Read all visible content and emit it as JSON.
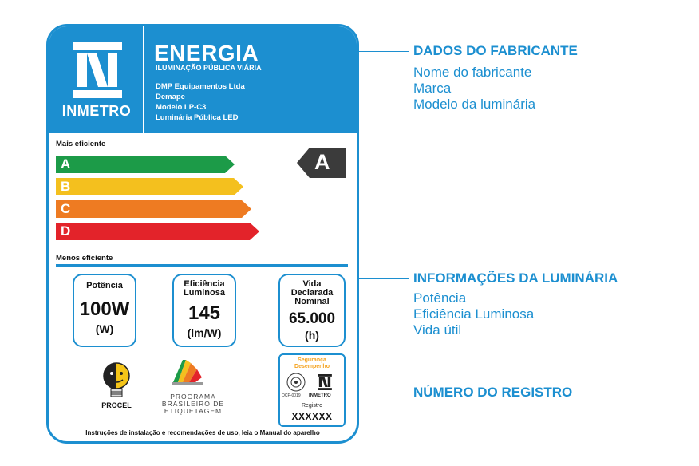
{
  "label": {
    "logo_text": "INMETRO",
    "title": "ENERGIA",
    "subtitle": "ILUMINAÇÃO PÚBLICA VIÁRIA",
    "info": [
      "DMP Equipamentos Ltda",
      "Demape",
      "Modelo LP-C3",
      "Luminária Pública LED"
    ],
    "mais_eficiente": "Mais eficiente",
    "menos_eficiente": "Menos eficiente",
    "classes": [
      {
        "letter": "A",
        "color": "#1c9b48"
      },
      {
        "letter": "B",
        "color": "#f4c01e"
      },
      {
        "letter": "C",
        "color": "#ee7b22"
      },
      {
        "letter": "D",
        "color": "#e3232a"
      }
    ],
    "selected_class": "A",
    "selected_color": "#3b3b3b",
    "potencia": {
      "caption": "Potência",
      "value": "100W",
      "unit": "(W)"
    },
    "eficiencia": {
      "caption1": "Eficiência",
      "caption2": "Luminosa",
      "value": "145",
      "unit": "(lm/W)"
    },
    "vida": {
      "caption1": "Vida",
      "caption2": "Declarada",
      "caption3": "Nominal",
      "value": "65.000",
      "unit": "(h)"
    },
    "procel": "PROCEL",
    "pbe": [
      "PROGRAMA",
      "BRASILEIRO DE",
      "ETIQUETAGEM"
    ],
    "seal": {
      "top1": "Segurança",
      "top2": "Desempenho",
      "ocp": "OCP-0019",
      "inmetro": "INMETRO",
      "registro": "Registro",
      "number": "XXXXXX"
    },
    "footer": "Instruções de instalação e recomendações de uso, leia o Manual do aparelho"
  },
  "annotations": {
    "fabricante": {
      "title": "DADOS DO FABRICANTE",
      "items": [
        "Nome do fabricante",
        "Marca",
        "Modelo da luminária"
      ]
    },
    "luminaria": {
      "title": "INFORMAÇÕES DA LUMINÁRIA",
      "items": [
        "Potência",
        "Eficiência Luminosa",
        "Vida útil"
      ]
    },
    "registro": {
      "title": "NÚMERO DO REGISTRO"
    }
  },
  "colors": {
    "brand_blue": "#1c8fd0"
  }
}
